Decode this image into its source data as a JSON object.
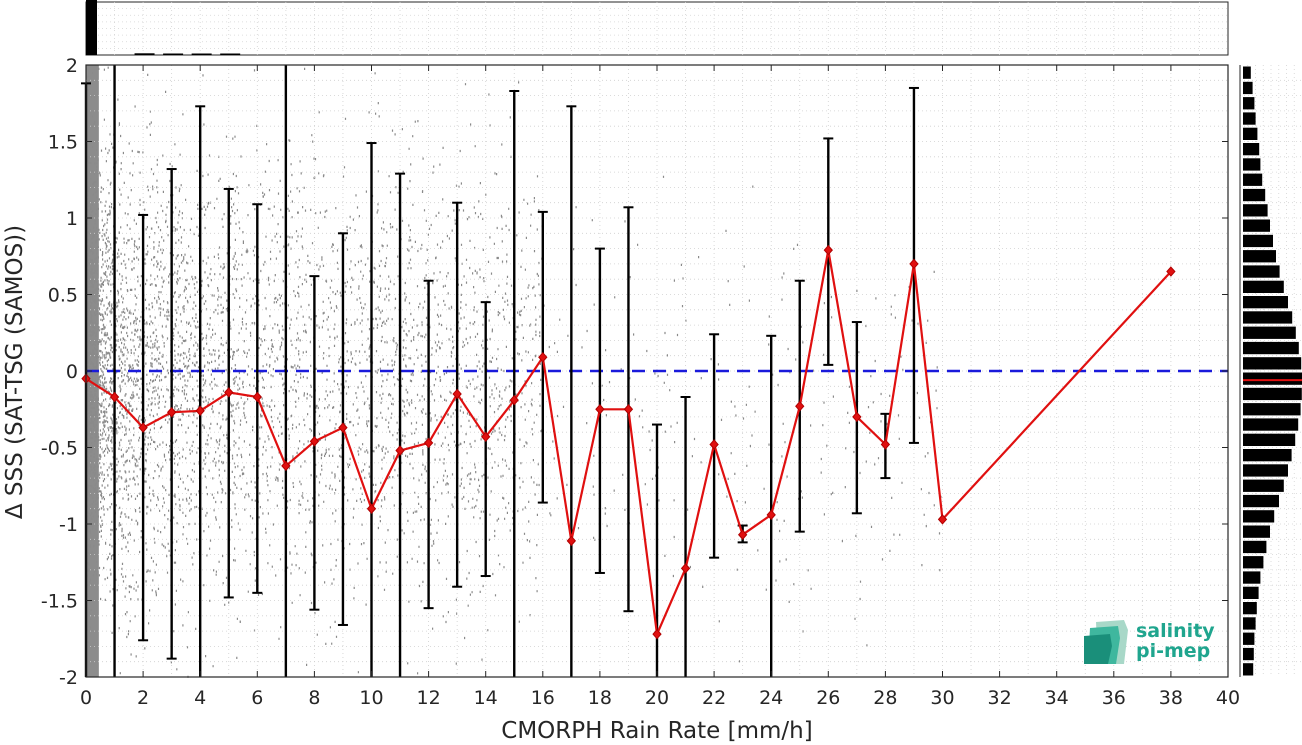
{
  "chart_data": {
    "type": "scatter",
    "xlabel": "CMORPH Rain Rate [mm/h]",
    "ylabel": "Δ SSS (SAT-TSG (SAMOS))",
    "xlim": [
      0,
      40
    ],
    "ylim": [
      -2,
      2
    ],
    "x_ticks": [
      "0",
      "2",
      "4",
      "6",
      "8",
      "10",
      "12",
      "14",
      "16",
      "18",
      "20",
      "22",
      "24",
      "26",
      "28",
      "30",
      "32",
      "34",
      "36",
      "38",
      "40"
    ],
    "y_ticks": [
      "2",
      "1.5",
      "1",
      "0.5",
      "0",
      "-0.5",
      "-1",
      "-1.5",
      "-2"
    ],
    "grid": true,
    "reference_line": {
      "y": 0,
      "style": "dashed",
      "color": "#1a1adb"
    },
    "mean_series": {
      "color": "#e01010",
      "x": [
        0,
        1,
        2,
        3,
        4,
        5,
        6,
        7,
        8,
        9,
        10,
        11,
        12,
        13,
        14,
        15,
        16,
        17,
        18,
        19,
        20,
        21,
        22,
        23,
        24,
        25,
        26,
        27,
        28,
        29,
        30,
        38
      ],
      "y": [
        -0.05,
        -0.17,
        -0.37,
        -0.27,
        -0.26,
        -0.14,
        -0.17,
        -0.62,
        -0.46,
        -0.37,
        -0.9,
        -0.52,
        -0.47,
        -0.15,
        -0.43,
        -0.19,
        0.09,
        -1.11,
        -0.25,
        -0.25,
        -1.72,
        -1.29,
        -0.48,
        -1.07,
        -0.94,
        -0.23,
        0.79,
        -0.3,
        -0.48,
        0.7,
        -0.97,
        0.65
      ]
    },
    "error_bars": [
      {
        "x": 0,
        "lo": -2,
        "hi": 1.88
      },
      {
        "x": 1,
        "lo": -2,
        "hi": 2
      },
      {
        "x": 2,
        "lo": -1.76,
        "hi": 1.02
      },
      {
        "x": 3,
        "lo": -1.88,
        "hi": 1.32
      },
      {
        "x": 4,
        "lo": -2,
        "hi": 1.73
      },
      {
        "x": 5,
        "lo": -1.48,
        "hi": 1.19
      },
      {
        "x": 6,
        "lo": -1.45,
        "hi": 1.09
      },
      {
        "x": 7,
        "lo": -2,
        "hi": 2
      },
      {
        "x": 8,
        "lo": -1.56,
        "hi": 0.62
      },
      {
        "x": 9,
        "lo": -1.66,
        "hi": 0.9
      },
      {
        "x": 10,
        "lo": -2,
        "hi": 1.49
      },
      {
        "x": 11,
        "lo": -2,
        "hi": 1.29
      },
      {
        "x": 12,
        "lo": -1.55,
        "hi": 0.59
      },
      {
        "x": 13,
        "lo": -1.41,
        "hi": 1.1
      },
      {
        "x": 14,
        "lo": -1.34,
        "hi": 0.45
      },
      {
        "x": 15,
        "lo": -2,
        "hi": 1.83
      },
      {
        "x": 16,
        "lo": -0.86,
        "hi": 1.04
      },
      {
        "x": 17,
        "lo": -2,
        "hi": 1.73
      },
      {
        "x": 18,
        "lo": -1.32,
        "hi": 0.8
      },
      {
        "x": 19,
        "lo": -1.57,
        "hi": 1.07
      },
      {
        "x": 20,
        "lo": -2,
        "hi": -0.35
      },
      {
        "x": 21,
        "lo": -2,
        "hi": -0.17
      },
      {
        "x": 22,
        "lo": -1.22,
        "hi": 0.24
      },
      {
        "x": 23,
        "lo": -1.12,
        "hi": -1.01
      },
      {
        "x": 24,
        "lo": -2,
        "hi": 0.23
      },
      {
        "x": 25,
        "lo": -1.05,
        "hi": 0.59
      },
      {
        "x": 26,
        "lo": 0.04,
        "hi": 1.52
      },
      {
        "x": 27,
        "lo": -0.93,
        "hi": 0.32
      },
      {
        "x": 28,
        "lo": -0.7,
        "hi": -0.28
      },
      {
        "x": 29,
        "lo": -0.47,
        "hi": 1.85
      }
    ],
    "top_histogram": {
      "bins_x": [
        0,
        1,
        2,
        3,
        4
      ],
      "relative_counts": [
        1.0,
        0.03,
        0.015,
        0.008,
        0.005
      ]
    },
    "right_histogram": {
      "bins_y": [
        1.95,
        1.85,
        1.75,
        1.65,
        1.55,
        1.45,
        1.35,
        1.25,
        1.15,
        1.05,
        0.95,
        0.85,
        0.75,
        0.65,
        0.55,
        0.45,
        0.35,
        0.25,
        0.15,
        0.05,
        -0.05,
        -0.15,
        -0.25,
        -0.35,
        -0.45,
        -0.55,
        -0.65,
        -0.75,
        -0.85,
        -0.95,
        -1.05,
        -1.15,
        -1.25,
        -1.35,
        -1.45,
        -1.55,
        -1.65,
        -1.75,
        -1.85,
        -1.95
      ],
      "relative_counts": [
        0.13,
        0.16,
        0.19,
        0.21,
        0.24,
        0.27,
        0.29,
        0.32,
        0.37,
        0.41,
        0.45,
        0.5,
        0.55,
        0.61,
        0.68,
        0.75,
        0.82,
        0.88,
        0.93,
        0.97,
        1.0,
        0.98,
        0.96,
        0.92,
        0.87,
        0.81,
        0.75,
        0.68,
        0.6,
        0.52,
        0.45,
        0.39,
        0.34,
        0.29,
        0.26,
        0.23,
        0.21,
        0.19,
        0.18,
        0.17
      ],
      "mean_line_y": -0.06
    }
  },
  "logo": {
    "line1": "salinity",
    "line2": "pi-mep",
    "color": "#1fa58e"
  }
}
